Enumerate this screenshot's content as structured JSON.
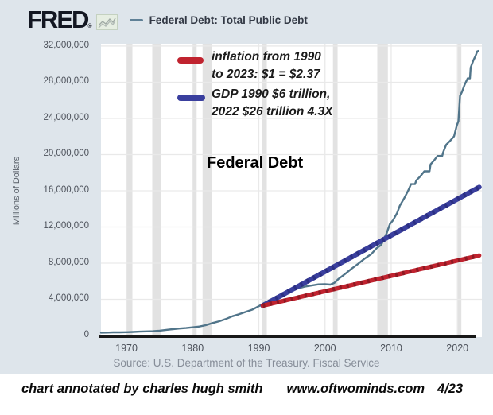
{
  "header": {
    "logo_text": "FRED",
    "logo_mark": "®",
    "series_label": "Federal Debt: Total Public Debt"
  },
  "source_line": "Source: U.S. Department of the Treasury. Fiscal Service",
  "footer": {
    "credit": "chart annotated by charles hugh smith",
    "site": "www.oftwominds.com",
    "date": "4/23"
  },
  "chart_data": {
    "type": "line",
    "title": "Federal Debt",
    "x_range": [
      1966.15,
      2023.7
    ],
    "y_range": [
      0,
      32260000
    ],
    "grid": true,
    "y_axis": {
      "title": "Millions of Dollars",
      "ticks": [
        {
          "value": 32000000,
          "label": "32,000,000"
        },
        {
          "value": 28000000,
          "label": "28,000,000"
        },
        {
          "value": 24000000,
          "label": "24,000,000"
        },
        {
          "value": 20000000,
          "label": "20,000,000"
        },
        {
          "value": 16000000,
          "label": "16,000,000"
        },
        {
          "value": 12000000,
          "label": "12,000,000"
        },
        {
          "value": 8000000,
          "label": "8,000,000"
        },
        {
          "value": 4000000,
          "label": "4,000,000"
        },
        {
          "value": 0,
          "label": "0"
        }
      ]
    },
    "x_axis": {
      "ticks": [
        {
          "value": 1970,
          "label": "1970"
        },
        {
          "value": 1980,
          "label": "1980"
        },
        {
          "value": 1990,
          "label": "1990"
        },
        {
          "value": 2000,
          "label": "2000"
        },
        {
          "value": 2010,
          "label": "2010"
        },
        {
          "value": 2020,
          "label": "2020"
        }
      ]
    },
    "colors": {
      "debt_line": "#51758a",
      "inflation_line": "#c0232f",
      "inflation_line_dark": "#8f1822",
      "gdp_line": "#3a3f9e",
      "gdp_line_dark": "#2b2f83",
      "recession_band": "#e2e2e2",
      "grid": "#e9e9e9",
      "axis": "#181818"
    },
    "recessions": [
      [
        1969.9,
        1970.9
      ],
      [
        1973.9,
        1975.2
      ],
      [
        1980.0,
        1980.6
      ],
      [
        1981.5,
        1982.9
      ],
      [
        1990.5,
        1991.2
      ],
      [
        2001.2,
        2001.9
      ],
      [
        2007.9,
        2009.5
      ],
      [
        2020.0,
        2020.6
      ]
    ],
    "series": [
      {
        "name": "Federal Debt: Total Public Debt",
        "units": "millions of dollars",
        "points": [
          [
            1966.15,
            320000
          ],
          [
            1967,
            326000
          ],
          [
            1968,
            348000
          ],
          [
            1969,
            354000
          ],
          [
            1970,
            372000
          ],
          [
            1971,
            398000
          ],
          [
            1972,
            427000
          ],
          [
            1973,
            458000
          ],
          [
            1974,
            475000
          ],
          [
            1975,
            533000
          ],
          [
            1976,
            620000
          ],
          [
            1977,
            699000
          ],
          [
            1978,
            772000
          ],
          [
            1979,
            827000
          ],
          [
            1980,
            908000
          ],
          [
            1981,
            997000
          ],
          [
            1982,
            1142000
          ],
          [
            1983,
            1377000
          ],
          [
            1984,
            1573000
          ],
          [
            1985,
            1823000
          ],
          [
            1986,
            2125000
          ],
          [
            1987,
            2350000
          ],
          [
            1988,
            2602000
          ],
          [
            1989,
            2857000
          ],
          [
            1990,
            3233000
          ],
          [
            1991,
            3665000
          ],
          [
            1992,
            4065000
          ],
          [
            1993,
            4411000
          ],
          [
            1994,
            4693000
          ],
          [
            1995,
            4974000
          ],
          [
            1996,
            5225000
          ],
          [
            1997,
            5413000
          ],
          [
            1998,
            5526000
          ],
          [
            1999,
            5656000
          ],
          [
            2000,
            5674000
          ],
          [
            2000.8,
            5622000
          ],
          [
            2001.4,
            5807000
          ],
          [
            2002,
            6228000
          ],
          [
            2003,
            6783000
          ],
          [
            2004,
            7379000
          ],
          [
            2005,
            7933000
          ],
          [
            2006,
            8507000
          ],
          [
            2007,
            9008000
          ],
          [
            2007.8,
            9654000
          ],
          [
            2008.5,
            10025000
          ],
          [
            2008.9,
            10700000
          ],
          [
            2009.3,
            11270000
          ],
          [
            2009.8,
            12311000
          ],
          [
            2010.3,
            12773000
          ],
          [
            2010.9,
            13562000
          ],
          [
            2011.3,
            14343000
          ],
          [
            2012,
            15223000
          ],
          [
            2012.6,
            16066000
          ],
          [
            2013,
            16738000
          ],
          [
            2013.6,
            16738000
          ],
          [
            2013.8,
            17156000
          ],
          [
            2014.4,
            17601000
          ],
          [
            2015,
            18152000
          ],
          [
            2015.8,
            18152000
          ],
          [
            2015.95,
            18922000
          ],
          [
            2016.5,
            19382000
          ],
          [
            2017,
            19846000
          ],
          [
            2017.7,
            19846000
          ],
          [
            2017.85,
            20245000
          ],
          [
            2018.3,
            21090000
          ],
          [
            2018.9,
            21516000
          ],
          [
            2019.5,
            22023000
          ],
          [
            2019.9,
            23201000
          ],
          [
            2020.15,
            23700000
          ],
          [
            2020.4,
            26477000
          ],
          [
            2020.7,
            26945000
          ],
          [
            2021.1,
            27748000
          ],
          [
            2021.55,
            28429000
          ],
          [
            2021.9,
            28429000
          ],
          [
            2022.0,
            29617000
          ],
          [
            2022.4,
            30400000
          ],
          [
            2022.75,
            30928000
          ],
          [
            2023.0,
            31420000
          ],
          [
            2023.2,
            31458000
          ]
        ]
      }
    ],
    "annotation_lines": [
      {
        "name": "inflation",
        "label_lines": [
          "inflation from 1990",
          "to 2023: $1 = $2.37"
        ],
        "start": [
          1990.6,
          3300000
        ],
        "end": [
          2023.3,
          8850000
        ]
      },
      {
        "name": "gdp",
        "label_lines": [
          "GDP 1990 $6 trillion,",
          "2022 $26 trillion 4.3X"
        ],
        "start": [
          1990.6,
          3300000
        ],
        "end": [
          2023.3,
          16400000
        ]
      }
    ]
  }
}
